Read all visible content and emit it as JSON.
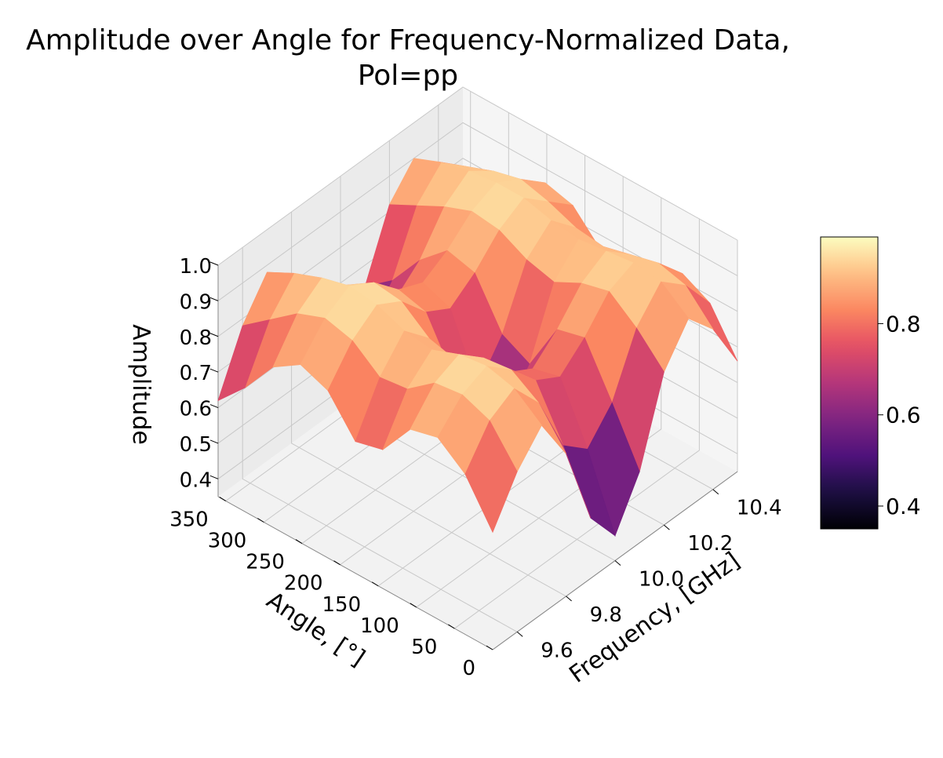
{
  "figure": {
    "title_line1": "Amplitude over Angle for Frequency-Normalized Data,",
    "title_line2": "Pol=pp"
  },
  "colors": {
    "pane": "#f2f2f2",
    "grid": "#c8c8c8",
    "colormap": "magma"
  },
  "chart_data": {
    "type": "surface3d",
    "title": "Amplitude over Angle for Frequency-Normalized Data, Pol=pp",
    "xlabel": "Frequency, [GHz]",
    "ylabel": "Angle, [°]",
    "zlabel": "Amplitude",
    "xlim": [
      9.5,
      10.5
    ],
    "ylim": [
      0,
      360
    ],
    "zlim": [
      0.35,
      1.0
    ],
    "x_ticks": [
      9.6,
      9.8,
      10.0,
      10.2,
      10.4
    ],
    "x_tick_labels": [
      "9.6",
      "9.8",
      "10.0",
      "10.2",
      "10.4"
    ],
    "y_ticks": [
      0,
      50,
      100,
      150,
      200,
      250,
      300,
      350
    ],
    "y_tick_labels": [
      "0",
      "50",
      "100",
      "150",
      "200",
      "250",
      "300",
      "350"
    ],
    "z_ticks": [
      0.4,
      0.5,
      0.6,
      0.7,
      0.8,
      0.9,
      1.0
    ],
    "z_tick_labels": [
      "0.4",
      "0.5",
      "0.6",
      "0.7",
      "0.8",
      "0.9",
      "1.0"
    ],
    "colorbar": {
      "colormap": "magma",
      "range": [
        0.35,
        0.99
      ],
      "ticks": [
        0.4,
        0.6,
        0.8
      ],
      "tick_labels": [
        "0.4",
        "0.6",
        "0.8"
      ]
    },
    "grid": true,
    "surface": {
      "x": [
        9.5,
        9.6,
        9.7,
        9.8,
        9.9,
        10.0,
        10.1,
        10.2,
        10.3,
        10.4,
        10.5
      ],
      "y": [
        0,
        36,
        72,
        108,
        144,
        180,
        216,
        252,
        288,
        324,
        360
      ],
      "z": [
        [
          0.68,
          0.8,
          0.88,
          0.75,
          0.52,
          0.42,
          0.55,
          0.78,
          0.88,
          0.8,
          0.66
        ],
        [
          0.8,
          0.9,
          0.94,
          0.85,
          0.68,
          0.62,
          0.7,
          0.86,
          0.94,
          0.88,
          0.78
        ],
        [
          0.86,
          0.93,
          0.96,
          0.9,
          0.82,
          0.78,
          0.84,
          0.92,
          0.95,
          0.9,
          0.82
        ],
        [
          0.84,
          0.92,
          0.95,
          0.89,
          0.8,
          0.76,
          0.82,
          0.9,
          0.94,
          0.88,
          0.8
        ],
        [
          0.74,
          0.86,
          0.92,
          0.84,
          0.66,
          0.58,
          0.68,
          0.86,
          0.93,
          0.86,
          0.74
        ],
        [
          0.72,
          0.85,
          0.93,
          0.86,
          0.7,
          0.62,
          0.72,
          0.88,
          0.94,
          0.87,
          0.76
        ],
        [
          0.82,
          0.91,
          0.96,
          0.92,
          0.84,
          0.8,
          0.85,
          0.92,
          0.96,
          0.9,
          0.84
        ],
        [
          0.85,
          0.93,
          0.97,
          0.93,
          0.86,
          0.83,
          0.87,
          0.93,
          0.96,
          0.92,
          0.86
        ],
        [
          0.8,
          0.9,
          0.95,
          0.88,
          0.78,
          0.74,
          0.8,
          0.9,
          0.95,
          0.9,
          0.82
        ],
        [
          0.7,
          0.84,
          0.92,
          0.84,
          0.68,
          0.6,
          0.7,
          0.86,
          0.93,
          0.87,
          0.74
        ],
        [
          0.62,
          0.78,
          0.88,
          0.8,
          0.62,
          0.55,
          0.64,
          0.82,
          0.9,
          0.84,
          0.7
        ]
      ]
    }
  }
}
